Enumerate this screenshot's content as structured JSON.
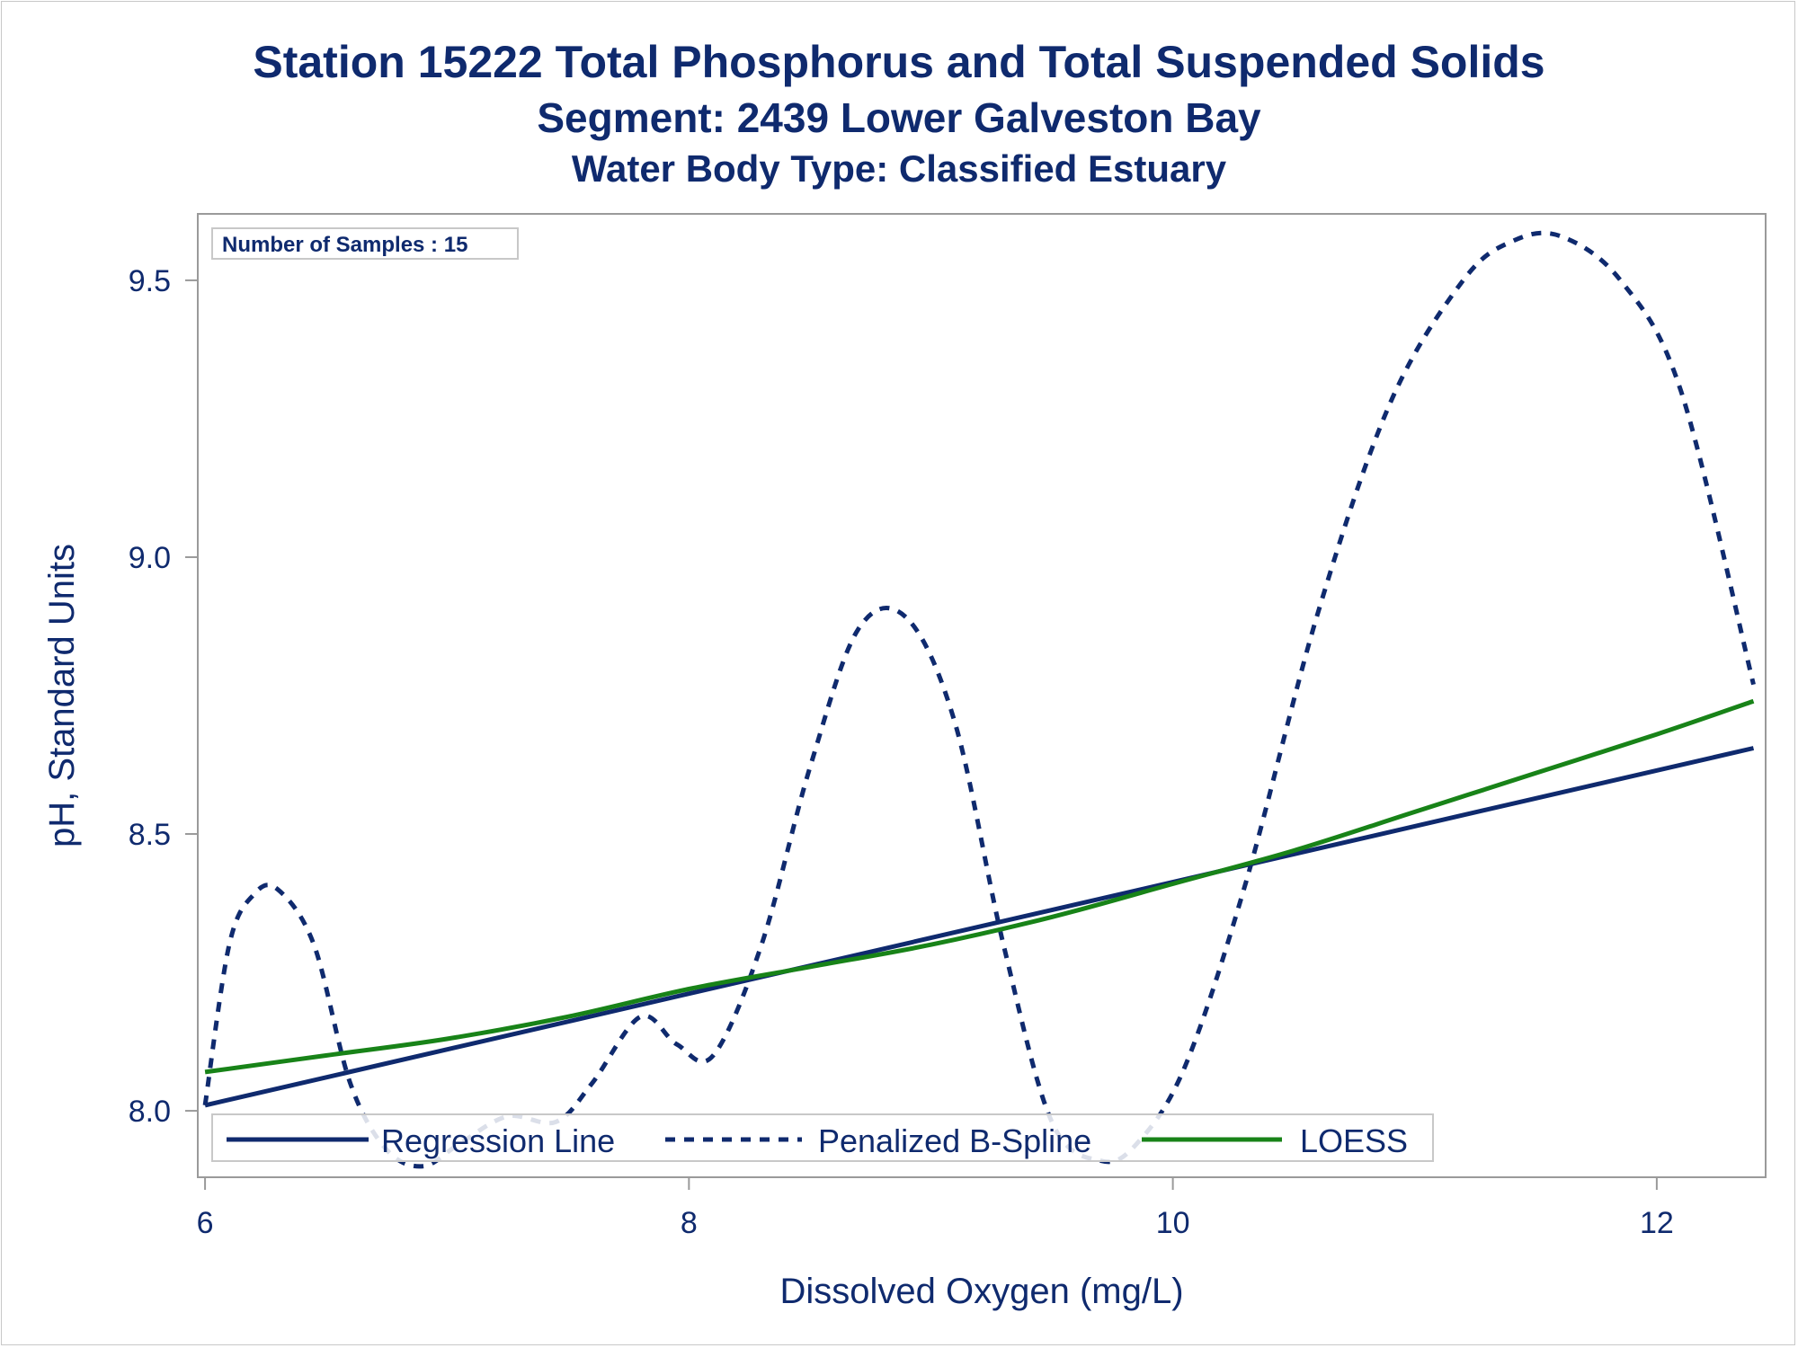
{
  "titles": {
    "line1": "Station 15222  Total Phosphorus and Total Suspended Solids",
    "line2": "Segment: 2439  Lower Galveston Bay",
    "line3": "Water Body Type: Classified Estuary"
  },
  "inset": {
    "text": "Number of Samples : 15"
  },
  "colors": {
    "navy": "#0f2a6e",
    "green": "#188318",
    "frame": "#9a9a9a",
    "legend_border": "#c8c8c8"
  },
  "chart_data": {
    "type": "line",
    "xlabel": "Dissolved Oxygen (mg/L)",
    "ylabel": "pH, Standard Units",
    "xlim": [
      5.97,
      12.45
    ],
    "ylim": [
      7.88,
      9.62
    ],
    "xticks": [
      6,
      8,
      10,
      12
    ],
    "yticks": [
      8.0,
      8.5,
      9.0,
      9.5
    ],
    "xtick_labels": [
      "6",
      "8",
      "10",
      "12"
    ],
    "ytick_labels": [
      "8.0",
      "8.5",
      "9.0",
      "9.5"
    ],
    "grid": false,
    "legend_position": "bottom-inside",
    "series": [
      {
        "name": "Regression Line",
        "style": "solid",
        "x": [
          6.0,
          12.4
        ],
        "y": [
          8.01,
          8.655
        ]
      },
      {
        "name": "Penalized B-Spline",
        "style": "dashed",
        "x": [
          6.0,
          6.1,
          6.2,
          6.3,
          6.45,
          6.6,
          6.75,
          6.9,
          7.05,
          7.25,
          7.45,
          7.6,
          7.8,
          7.95,
          8.1,
          8.3,
          8.5,
          8.7,
          8.9,
          9.1,
          9.3,
          9.5,
          9.7,
          9.85,
          10.05,
          10.3,
          10.6,
          10.9,
          11.2,
          11.4,
          11.6,
          11.85,
          12.1,
          12.4
        ],
        "y": [
          8.01,
          8.3,
          8.39,
          8.4,
          8.3,
          8.05,
          7.93,
          7.9,
          7.94,
          7.99,
          7.98,
          8.05,
          8.17,
          8.12,
          8.1,
          8.3,
          8.62,
          8.87,
          8.89,
          8.7,
          8.3,
          7.98,
          7.91,
          7.94,
          8.08,
          8.41,
          8.9,
          9.28,
          9.5,
          9.57,
          9.58,
          9.5,
          9.3,
          8.77
        ]
      },
      {
        "name": "LOESS",
        "style": "solid",
        "x": [
          6.0,
          6.5,
          7.0,
          7.5,
          8.0,
          8.5,
          9.0,
          9.5,
          10.0,
          10.5,
          11.0,
          11.5,
          12.0,
          12.4
        ],
        "y": [
          8.07,
          8.1,
          8.13,
          8.17,
          8.22,
          8.26,
          8.3,
          8.35,
          8.41,
          8.47,
          8.54,
          8.61,
          8.68,
          8.74
        ]
      }
    ]
  }
}
